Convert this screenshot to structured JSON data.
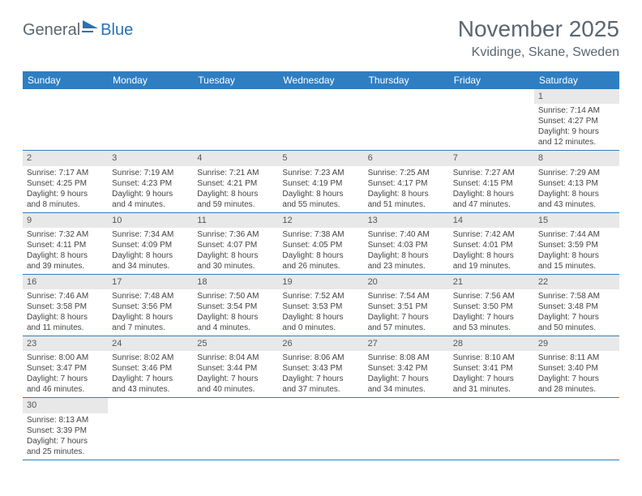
{
  "logo": {
    "part1": "General",
    "part2": "Blue",
    "icon_color": "#2573b8"
  },
  "title": "November 2025",
  "subtitle": "Kvidinge, Skane, Sweden",
  "colors": {
    "header_bg": "#2f7ec2",
    "header_text": "#ffffff",
    "daynum_bg": "#e8e8e8",
    "row_border": "#2f7ec2",
    "title_color": "#5a6670",
    "body_text": "#444444"
  },
  "fontsizes": {
    "title": 28,
    "subtitle": 16,
    "day_header": 12,
    "daynum": 11,
    "cell": 10
  },
  "day_headers": [
    "Sunday",
    "Monday",
    "Tuesday",
    "Wednesday",
    "Thursday",
    "Friday",
    "Saturday"
  ],
  "weeks": [
    [
      {
        "empty": true
      },
      {
        "empty": true
      },
      {
        "empty": true
      },
      {
        "empty": true
      },
      {
        "empty": true
      },
      {
        "empty": true
      },
      {
        "n": "1",
        "sunrise": "Sunrise: 7:14 AM",
        "sunset": "Sunset: 4:27 PM",
        "d1": "Daylight: 9 hours",
        "d2": "and 12 minutes."
      }
    ],
    [
      {
        "n": "2",
        "sunrise": "Sunrise: 7:17 AM",
        "sunset": "Sunset: 4:25 PM",
        "d1": "Daylight: 9 hours",
        "d2": "and 8 minutes."
      },
      {
        "n": "3",
        "sunrise": "Sunrise: 7:19 AM",
        "sunset": "Sunset: 4:23 PM",
        "d1": "Daylight: 9 hours",
        "d2": "and 4 minutes."
      },
      {
        "n": "4",
        "sunrise": "Sunrise: 7:21 AM",
        "sunset": "Sunset: 4:21 PM",
        "d1": "Daylight: 8 hours",
        "d2": "and 59 minutes."
      },
      {
        "n": "5",
        "sunrise": "Sunrise: 7:23 AM",
        "sunset": "Sunset: 4:19 PM",
        "d1": "Daylight: 8 hours",
        "d2": "and 55 minutes."
      },
      {
        "n": "6",
        "sunrise": "Sunrise: 7:25 AM",
        "sunset": "Sunset: 4:17 PM",
        "d1": "Daylight: 8 hours",
        "d2": "and 51 minutes."
      },
      {
        "n": "7",
        "sunrise": "Sunrise: 7:27 AM",
        "sunset": "Sunset: 4:15 PM",
        "d1": "Daylight: 8 hours",
        "d2": "and 47 minutes."
      },
      {
        "n": "8",
        "sunrise": "Sunrise: 7:29 AM",
        "sunset": "Sunset: 4:13 PM",
        "d1": "Daylight: 8 hours",
        "d2": "and 43 minutes."
      }
    ],
    [
      {
        "n": "9",
        "sunrise": "Sunrise: 7:32 AM",
        "sunset": "Sunset: 4:11 PM",
        "d1": "Daylight: 8 hours",
        "d2": "and 39 minutes."
      },
      {
        "n": "10",
        "sunrise": "Sunrise: 7:34 AM",
        "sunset": "Sunset: 4:09 PM",
        "d1": "Daylight: 8 hours",
        "d2": "and 34 minutes."
      },
      {
        "n": "11",
        "sunrise": "Sunrise: 7:36 AM",
        "sunset": "Sunset: 4:07 PM",
        "d1": "Daylight: 8 hours",
        "d2": "and 30 minutes."
      },
      {
        "n": "12",
        "sunrise": "Sunrise: 7:38 AM",
        "sunset": "Sunset: 4:05 PM",
        "d1": "Daylight: 8 hours",
        "d2": "and 26 minutes."
      },
      {
        "n": "13",
        "sunrise": "Sunrise: 7:40 AM",
        "sunset": "Sunset: 4:03 PM",
        "d1": "Daylight: 8 hours",
        "d2": "and 23 minutes."
      },
      {
        "n": "14",
        "sunrise": "Sunrise: 7:42 AM",
        "sunset": "Sunset: 4:01 PM",
        "d1": "Daylight: 8 hours",
        "d2": "and 19 minutes."
      },
      {
        "n": "15",
        "sunrise": "Sunrise: 7:44 AM",
        "sunset": "Sunset: 3:59 PM",
        "d1": "Daylight: 8 hours",
        "d2": "and 15 minutes."
      }
    ],
    [
      {
        "n": "16",
        "sunrise": "Sunrise: 7:46 AM",
        "sunset": "Sunset: 3:58 PM",
        "d1": "Daylight: 8 hours",
        "d2": "and 11 minutes."
      },
      {
        "n": "17",
        "sunrise": "Sunrise: 7:48 AM",
        "sunset": "Sunset: 3:56 PM",
        "d1": "Daylight: 8 hours",
        "d2": "and 7 minutes."
      },
      {
        "n": "18",
        "sunrise": "Sunrise: 7:50 AM",
        "sunset": "Sunset: 3:54 PM",
        "d1": "Daylight: 8 hours",
        "d2": "and 4 minutes."
      },
      {
        "n": "19",
        "sunrise": "Sunrise: 7:52 AM",
        "sunset": "Sunset: 3:53 PM",
        "d1": "Daylight: 8 hours",
        "d2": "and 0 minutes."
      },
      {
        "n": "20",
        "sunrise": "Sunrise: 7:54 AM",
        "sunset": "Sunset: 3:51 PM",
        "d1": "Daylight: 7 hours",
        "d2": "and 57 minutes."
      },
      {
        "n": "21",
        "sunrise": "Sunrise: 7:56 AM",
        "sunset": "Sunset: 3:50 PM",
        "d1": "Daylight: 7 hours",
        "d2": "and 53 minutes."
      },
      {
        "n": "22",
        "sunrise": "Sunrise: 7:58 AM",
        "sunset": "Sunset: 3:48 PM",
        "d1": "Daylight: 7 hours",
        "d2": "and 50 minutes."
      }
    ],
    [
      {
        "n": "23",
        "sunrise": "Sunrise: 8:00 AM",
        "sunset": "Sunset: 3:47 PM",
        "d1": "Daylight: 7 hours",
        "d2": "and 46 minutes."
      },
      {
        "n": "24",
        "sunrise": "Sunrise: 8:02 AM",
        "sunset": "Sunset: 3:46 PM",
        "d1": "Daylight: 7 hours",
        "d2": "and 43 minutes."
      },
      {
        "n": "25",
        "sunrise": "Sunrise: 8:04 AM",
        "sunset": "Sunset: 3:44 PM",
        "d1": "Daylight: 7 hours",
        "d2": "and 40 minutes."
      },
      {
        "n": "26",
        "sunrise": "Sunrise: 8:06 AM",
        "sunset": "Sunset: 3:43 PM",
        "d1": "Daylight: 7 hours",
        "d2": "and 37 minutes."
      },
      {
        "n": "27",
        "sunrise": "Sunrise: 8:08 AM",
        "sunset": "Sunset: 3:42 PM",
        "d1": "Daylight: 7 hours",
        "d2": "and 34 minutes."
      },
      {
        "n": "28",
        "sunrise": "Sunrise: 8:10 AM",
        "sunset": "Sunset: 3:41 PM",
        "d1": "Daylight: 7 hours",
        "d2": "and 31 minutes."
      },
      {
        "n": "29",
        "sunrise": "Sunrise: 8:11 AM",
        "sunset": "Sunset: 3:40 PM",
        "d1": "Daylight: 7 hours",
        "d2": "and 28 minutes."
      }
    ],
    [
      {
        "n": "30",
        "sunrise": "Sunrise: 8:13 AM",
        "sunset": "Sunset: 3:39 PM",
        "d1": "Daylight: 7 hours",
        "d2": "and 25 minutes."
      },
      {
        "empty": true
      },
      {
        "empty": true
      },
      {
        "empty": true
      },
      {
        "empty": true
      },
      {
        "empty": true
      },
      {
        "empty": true
      }
    ]
  ]
}
